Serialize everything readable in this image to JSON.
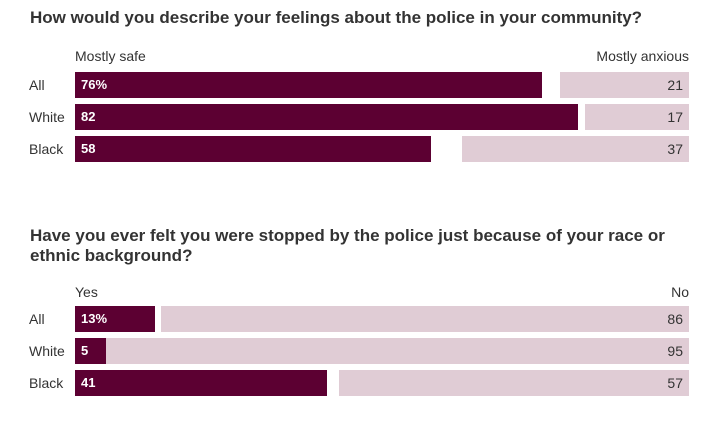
{
  "colors": {
    "left": "#5c0032",
    "right": "#e0ccd5"
  },
  "chart_data": [
    {
      "type": "bar",
      "title": "How would you describe your feelings about the police in your community?",
      "left_label": "Mostly safe",
      "right_label": "Mostly anxious",
      "categories": [
        "All",
        "White",
        "Black"
      ],
      "series": [
        {
          "name": "Mostly safe",
          "values": [
            76,
            82,
            58
          ],
          "labels": [
            "76%",
            "82",
            "58"
          ]
        },
        {
          "name": "Mostly anxious",
          "values": [
            21,
            17,
            37
          ],
          "labels": [
            "21",
            "17",
            "37"
          ]
        }
      ],
      "xlim": [
        0,
        100
      ]
    },
    {
      "type": "bar",
      "title": "Have you ever felt you were stopped by the police just because of your race or ethnic background?",
      "left_label": "Yes",
      "right_label": "No",
      "categories": [
        "All",
        "White",
        "Black"
      ],
      "series": [
        {
          "name": "Yes",
          "values": [
            13,
            5,
            41
          ],
          "labels": [
            "13%",
            "5",
            "41"
          ]
        },
        {
          "name": "No",
          "values": [
            86,
            95,
            57
          ],
          "labels": [
            "86",
            "95",
            "57"
          ]
        }
      ],
      "xlim": [
        0,
        100
      ]
    }
  ]
}
